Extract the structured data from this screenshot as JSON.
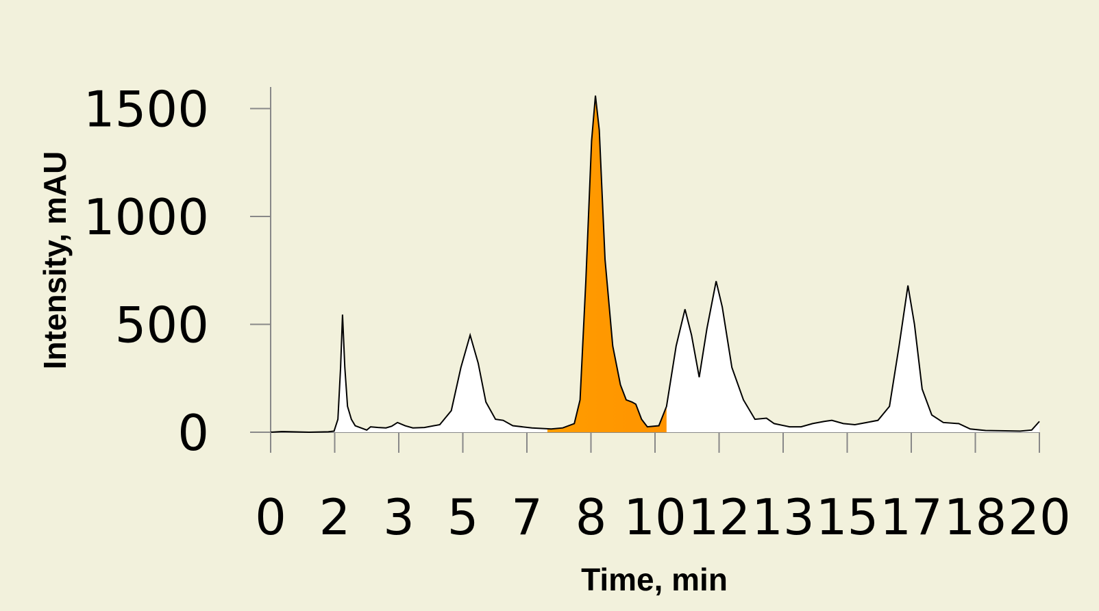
{
  "chart_data": {
    "type": "line",
    "xlabel": "Time, min",
    "ylabel": "Intensity, mAU",
    "xlim": [
      0,
      20
    ],
    "ylim": [
      0,
      1600
    ],
    "xticks": [
      0,
      {
        "value": 1.6667,
        "label": "2"
      },
      {
        "value": 3.3333,
        "label": "3"
      },
      5,
      {
        "value": 6.6667,
        "label": "7"
      },
      {
        "value": 8.3333,
        "label": "8"
      },
      10,
      {
        "value": 11.6667,
        "label": "12"
      },
      {
        "value": 13.3333,
        "label": "13"
      },
      15,
      {
        "value": 16.6667,
        "label": "17"
      },
      {
        "value": 18.3333,
        "label": "18"
      },
      20
    ],
    "yticks": [
      0,
      500,
      1000,
      1500
    ],
    "highlight_range": [
      7.2,
      10.3
    ],
    "highlight_color": "#ff8c00",
    "series": [
      {
        "color": "#000000",
        "fill": "#ffffff",
        "x": [
          0,
          0.3,
          1.0,
          1.5,
          1.65,
          1.75,
          1.82,
          1.87,
          1.93,
          2.0,
          2.1,
          2.2,
          2.35,
          2.5,
          2.6,
          2.8,
          3.0,
          3.15,
          3.3,
          3.5,
          3.7,
          4.0,
          4.4,
          4.7,
          4.95,
          5.19,
          5.4,
          5.6,
          5.85,
          6.05,
          6.3,
          6.8,
          7.3,
          7.6,
          7.9,
          8.05,
          8.2,
          8.35,
          8.45,
          8.55,
          8.7,
          8.9,
          9.1,
          9.25,
          9.4,
          9.5,
          9.65,
          9.8,
          10.1,
          10.3,
          10.55,
          10.78,
          10.95,
          11.15,
          11.35,
          11.59,
          11.75,
          12.0,
          12.3,
          12.6,
          12.9,
          13.1,
          13.5,
          13.8,
          14.1,
          14.4,
          14.6,
          14.9,
          15.2,
          15.5,
          15.8,
          16.1,
          16.35,
          16.58,
          16.75,
          16.95,
          17.2,
          17.5,
          17.9,
          18.2,
          18.6,
          19.5,
          19.8,
          20
        ],
        "values": [
          0,
          3,
          0,
          2,
          5,
          60,
          300,
          545,
          300,
          120,
          60,
          30,
          20,
          10,
          25,
          22,
          20,
          28,
          45,
          30,
          20,
          22,
          35,
          100,
          300,
          450,
          320,
          140,
          60,
          55,
          30,
          20,
          15,
          20,
          40,
          150,
          700,
          1350,
          1560,
          1400,
          800,
          400,
          220,
          150,
          140,
          130,
          60,
          25,
          30,
          120,
          400,
          570,
          450,
          255,
          480,
          700,
          580,
          300,
          150,
          60,
          65,
          40,
          25,
          25,
          40,
          50,
          55,
          40,
          35,
          45,
          55,
          120,
          400,
          680,
          500,
          200,
          80,
          45,
          40,
          15,
          8,
          5,
          10,
          50
        ]
      }
    ]
  }
}
